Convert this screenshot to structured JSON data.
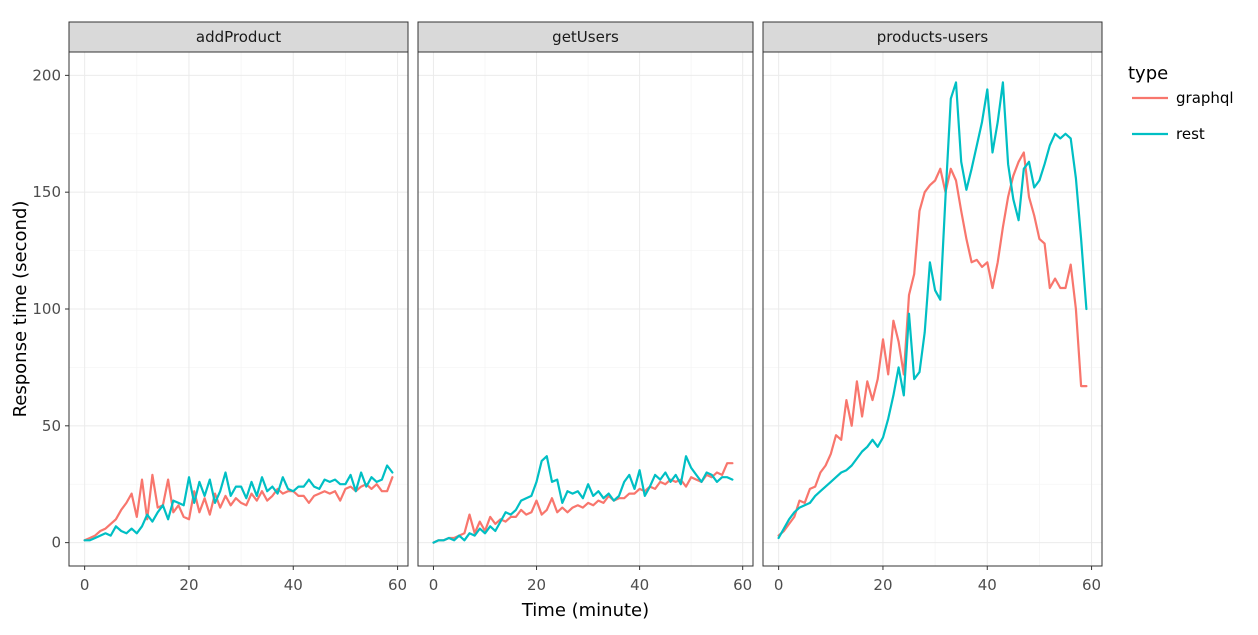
{
  "chart_data": {
    "type": "line",
    "xlabel": "Time (minute)",
    "ylabel": "Response time (second)",
    "xlim": [
      -3,
      62
    ],
    "ylim": [
      -10,
      210
    ],
    "x_ticks": [
      0,
      20,
      40,
      60
    ],
    "y_ticks": [
      0,
      50,
      100,
      150,
      200
    ],
    "grid": true,
    "legend": {
      "title": "type",
      "placement": "right",
      "entries": [
        {
          "name": "graphql",
          "color": "#F8766D"
        },
        {
          "name": "rest",
          "color": "#00BFC4"
        }
      ]
    },
    "panels": [
      {
        "title": "addProduct",
        "series": [
          {
            "name": "graphql",
            "x": [
              0,
              1,
              2,
              3,
              4,
              5,
              6,
              7,
              8,
              9,
              10,
              11,
              12,
              13,
              14,
              15,
              16,
              17,
              18,
              19,
              20,
              21,
              22,
              23,
              24,
              25,
              26,
              27,
              28,
              29,
              30,
              31,
              32,
              33,
              34,
              35,
              36,
              37,
              38,
              39,
              40,
              41,
              42,
              43,
              44,
              45,
              46,
              47,
              48,
              49,
              50,
              51,
              52,
              53,
              54,
              55,
              56,
              57,
              58,
              59
            ],
            "y": [
              1,
              2,
              3,
              5,
              6,
              8,
              10,
              14,
              17,
              21,
              11,
              27,
              10,
              29,
              15,
              16,
              27,
              13,
              16,
              11,
              10,
              22,
              13,
              19,
              12,
              21,
              15,
              20,
              16,
              19,
              17,
              16,
              21,
              18,
              22,
              18,
              20,
              23,
              21,
              22,
              22,
              20,
              20,
              17,
              20,
              21,
              22,
              21,
              22,
              18,
              23,
              24,
              22,
              24,
              25,
              23,
              25,
              22,
              22,
              28
            ]
          },
          {
            "name": "rest",
            "x": [
              0,
              1,
              2,
              3,
              4,
              5,
              6,
              7,
              8,
              9,
              10,
              11,
              12,
              13,
              14,
              15,
              16,
              17,
              18,
              19,
              20,
              21,
              22,
              23,
              24,
              25,
              26,
              27,
              28,
              29,
              30,
              31,
              32,
              33,
              34,
              35,
              36,
              37,
              38,
              39,
              40,
              41,
              42,
              43,
              44,
              45,
              46,
              47,
              48,
              49,
              50,
              51,
              52,
              53,
              54,
              55,
              56,
              57,
              58,
              59
            ],
            "y": [
              1,
              1,
              2,
              3,
              4,
              3,
              7,
              5,
              4,
              6,
              4,
              7,
              12,
              9,
              13,
              16,
              10,
              18,
              17,
              16,
              28,
              17,
              26,
              20,
              27,
              17,
              22,
              30,
              20,
              24,
              24,
              19,
              26,
              20,
              28,
              22,
              24,
              21,
              28,
              23,
              22,
              24,
              24,
              27,
              24,
              23,
              27,
              26,
              27,
              25,
              25,
              29,
              22,
              30,
              24,
              28,
              26,
              27,
              33,
              30
            ]
          }
        ]
      },
      {
        "title": "getUsers",
        "series": [
          {
            "name": "graphql",
            "x": [
              0,
              1,
              2,
              3,
              4,
              5,
              6,
              7,
              8,
              9,
              10,
              11,
              12,
              13,
              14,
              15,
              16,
              17,
              18,
              19,
              20,
              21,
              22,
              23,
              24,
              25,
              26,
              27,
              28,
              29,
              30,
              31,
              32,
              33,
              34,
              35,
              36,
              37,
              38,
              39,
              40,
              41,
              42,
              43,
              44,
              45,
              46,
              47,
              48,
              49,
              50,
              51,
              52,
              53,
              54,
              55,
              56,
              57,
              58
            ],
            "y": [
              0,
              1,
              1,
              2,
              2,
              3,
              4,
              12,
              4,
              9,
              5,
              11,
              8,
              10,
              9,
              11,
              11,
              14,
              12,
              13,
              18,
              12,
              14,
              19,
              13,
              15,
              13,
              15,
              16,
              15,
              17,
              16,
              18,
              17,
              20,
              18,
              19,
              19,
              21,
              21,
              23,
              22,
              24,
              23,
              26,
              25,
              27,
              26,
              27,
              24,
              28,
              27,
              26,
              29,
              28,
              30,
              29,
              34,
              34
            ]
          },
          {
            "name": "rest",
            "x": [
              0,
              1,
              2,
              3,
              4,
              5,
              6,
              7,
              8,
              9,
              10,
              11,
              12,
              13,
              14,
              15,
              16,
              17,
              18,
              19,
              20,
              21,
              22,
              23,
              24,
              25,
              26,
              27,
              28,
              29,
              30,
              31,
              32,
              33,
              34,
              35,
              36,
              37,
              38,
              39,
              40,
              41,
              42,
              43,
              44,
              45,
              46,
              47,
              48,
              49,
              50,
              51,
              52,
              53,
              54,
              55,
              56,
              57,
              58
            ],
            "y": [
              0,
              1,
              1,
              2,
              1,
              3,
              1,
              4,
              3,
              6,
              4,
              7,
              5,
              9,
              13,
              12,
              14,
              18,
              19,
              20,
              26,
              35,
              37,
              26,
              27,
              17,
              22,
              21,
              22,
              19,
              25,
              20,
              22,
              19,
              21,
              18,
              20,
              26,
              29,
              23,
              31,
              20,
              24,
              29,
              27,
              30,
              26,
              29,
              25,
              37,
              32,
              29,
              26,
              30,
              29,
              26,
              28,
              28,
              27
            ]
          }
        ]
      },
      {
        "title": "products-users",
        "series": [
          {
            "name": "graphql",
            "x": [
              0,
              1,
              2,
              3,
              4,
              5,
              6,
              7,
              8,
              9,
              10,
              11,
              12,
              13,
              14,
              15,
              16,
              17,
              18,
              19,
              20,
              21,
              22,
              23,
              24,
              25,
              26,
              27,
              28,
              29,
              30,
              31,
              32,
              33,
              34,
              35,
              36,
              37,
              38,
              39,
              40,
              41,
              42,
              43,
              44,
              45,
              46,
              47,
              48,
              49,
              50,
              51,
              52,
              53,
              54,
              55,
              56,
              57,
              58,
              59
            ],
            "y": [
              3,
              5,
              8,
              11,
              18,
              17,
              23,
              24,
              30,
              33,
              38,
              46,
              44,
              61,
              50,
              69,
              54,
              69,
              61,
              70,
              87,
              72,
              95,
              86,
              72,
              106,
              115,
              142,
              150,
              153,
              155,
              160,
              150,
              160,
              155,
              142,
              130,
              120,
              121,
              118,
              120,
              109,
              120,
              135,
              148,
              157,
              163,
              167,
              148,
              140,
              130,
              128,
              109,
              113,
              109,
              109,
              119,
              100,
              67,
              67
            ]
          },
          {
            "name": "rest",
            "x": [
              0,
              1,
              2,
              3,
              4,
              5,
              6,
              7,
              8,
              9,
              10,
              11,
              12,
              13,
              14,
              15,
              16,
              17,
              18,
              19,
              20,
              21,
              22,
              23,
              24,
              25,
              26,
              27,
              28,
              29,
              30,
              31,
              32,
              33,
              34,
              35,
              36,
              37,
              38,
              39,
              40,
              41,
              42,
              43,
              44,
              45,
              46,
              47,
              48,
              49,
              50,
              51,
              52,
              53,
              54,
              55,
              56,
              57,
              58,
              59
            ],
            "y": [
              2,
              6,
              10,
              13,
              15,
              16,
              17,
              20,
              22,
              24,
              26,
              28,
              30,
              31,
              33,
              36,
              39,
              41,
              44,
              41,
              45,
              53,
              63,
              75,
              63,
              98,
              70,
              73,
              90,
              120,
              108,
              104,
              148,
              190,
              197,
              163,
              151,
              160,
              170,
              180,
              194,
              167,
              180,
              197,
              162,
              147,
              138,
              160,
              163,
              152,
              155,
              162,
              170,
              175,
              173,
              175,
              173,
              156,
              130,
              100
            ]
          }
        ]
      }
    ]
  }
}
